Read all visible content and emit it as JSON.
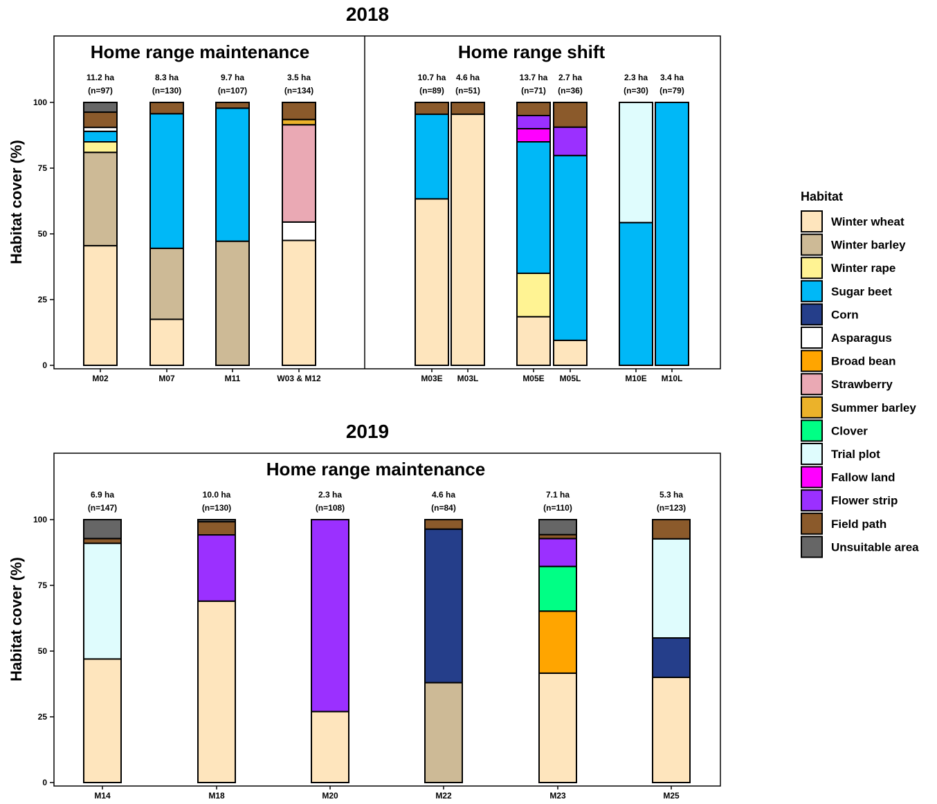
{
  "chart_data": [
    {
      "type": "bar",
      "stacked": true,
      "title": "2018",
      "ylabel": "Habitat cover (%)",
      "ylim": [
        0,
        120
      ],
      "yticks": [
        0,
        25,
        50,
        75,
        100
      ],
      "grid": false,
      "panels": [
        {
          "title": "Home range maintenance",
          "categories": [
            "M02",
            "M07",
            "M11",
            "W03 & M12"
          ],
          "annotations": [
            {
              "area": "11.2 ha",
              "n": "(n=97)"
            },
            {
              "area": "8.3 ha",
              "n": "(n=130)"
            },
            {
              "area": "9.7 ha",
              "n": "(n=107)"
            },
            {
              "area": "3.5 ha",
              "n": "(n=134)"
            }
          ],
          "series": [
            {
              "name": "Winter wheat",
              "values": [
                45.5,
                17.5,
                0,
                47.5
              ]
            },
            {
              "name": "Winter barley",
              "values": [
                35.5,
                27,
                47.2,
                0
              ]
            },
            {
              "name": "Winter rape",
              "values": [
                4,
                0,
                0,
                0
              ]
            },
            {
              "name": "Sugar beet",
              "values": [
                4,
                51.2,
                50.6,
                0
              ]
            },
            {
              "name": "Asparagus",
              "values": [
                1.5,
                0,
                0,
                7
              ]
            },
            {
              "name": "Strawberry",
              "values": [
                0,
                0,
                0,
                37
              ]
            },
            {
              "name": "Summer barley",
              "values": [
                0,
                0,
                0,
                2
              ]
            },
            {
              "name": "Field path",
              "values": [
                5.8,
                4.3,
                2.2,
                6.5
              ]
            },
            {
              "name": "Unsuitable area",
              "values": [
                3.7,
                0,
                0,
                0
              ]
            }
          ]
        },
        {
          "title": "Home range shift",
          "categories": [
            "M03E",
            "M03L",
            "M05E",
            "M05L",
            "M10E",
            "M10L"
          ],
          "annotations": [
            {
              "area": "10.7 ha",
              "n": "(n=89)"
            },
            {
              "area": "4.6 ha",
              "n": "(n=51)"
            },
            {
              "area": "13.7 ha",
              "n": "(n=71)"
            },
            {
              "area": "2.7 ha",
              "n": "(n=36)"
            },
            {
              "area": "2.3 ha",
              "n": "(n=30)"
            },
            {
              "area": "3.4 ha",
              "n": "(n=79)"
            }
          ],
          "series": [
            {
              "name": "Winter wheat",
              "values": [
                63.3,
                95.5,
                18.5,
                9.5,
                0,
                0
              ]
            },
            {
              "name": "Winter rape",
              "values": [
                0,
                0,
                16.5,
                0,
                0,
                0
              ]
            },
            {
              "name": "Sugar beet",
              "values": [
                32.2,
                0,
                50,
                70.3,
                54.3,
                100
              ]
            },
            {
              "name": "Fallow land",
              "values": [
                0,
                0,
                5,
                0,
                0,
                0
              ]
            },
            {
              "name": "Flower strip",
              "values": [
                0,
                0,
                5,
                10.8,
                0,
                0
              ]
            },
            {
              "name": "Trial plot",
              "values": [
                0,
                0,
                0,
                0,
                45.7,
                0
              ]
            },
            {
              "name": "Field path",
              "values": [
                4.5,
                4.5,
                5,
                9.4,
                0,
                0
              ]
            }
          ]
        }
      ]
    },
    {
      "type": "bar",
      "stacked": true,
      "title": "2019",
      "ylabel": "Habitat cover (%)",
      "ylim": [
        0,
        120
      ],
      "yticks": [
        0,
        25,
        50,
        75,
        100
      ],
      "grid": false,
      "panels": [
        {
          "title": "Home range maintenance",
          "categories": [
            "M14",
            "M18",
            "M20",
            "M22",
            "M23",
            "M25"
          ],
          "annotations": [
            {
              "area": "6.9 ha",
              "n": "(n=147)"
            },
            {
              "area": "10.0 ha",
              "n": "(n=130)"
            },
            {
              "area": "2.3 ha",
              "n": "(n=108)"
            },
            {
              "area": "4.6 ha",
              "n": "(n=84)"
            },
            {
              "area": "7.1 ha",
              "n": "(n=110)"
            },
            {
              "area": "5.3 ha",
              "n": "(n=123)"
            }
          ],
          "series": [
            {
              "name": "Winter wheat",
              "values": [
                47,
                69,
                27,
                0,
                41.6,
                40
              ]
            },
            {
              "name": "Winter barley",
              "values": [
                0,
                0,
                0,
                38,
                0,
                0
              ]
            },
            {
              "name": "Corn",
              "values": [
                0,
                0,
                0,
                58.4,
                0,
                15
              ]
            },
            {
              "name": "Broad bean",
              "values": [
                0,
                0,
                0,
                0,
                23.6,
                0
              ]
            },
            {
              "name": "Clover",
              "values": [
                0,
                0,
                0,
                0,
                17,
                0
              ]
            },
            {
              "name": "Trial plot",
              "values": [
                44,
                0,
                0,
                0,
                0,
                37.7
              ]
            },
            {
              "name": "Flower strip",
              "values": [
                0,
                25.2,
                73,
                0,
                10.6,
                0
              ]
            },
            {
              "name": "Field path",
              "values": [
                1.8,
                5,
                0,
                3.6,
                1.5,
                7.3
              ]
            },
            {
              "name": "Unsuitable area",
              "values": [
                7.2,
                0.8,
                0,
                0,
                5.7,
                0
              ]
            }
          ]
        }
      ]
    }
  ],
  "legend": {
    "title": "Habitat",
    "placement": "right",
    "items": [
      {
        "label": "Winter wheat",
        "color": "#FEE5BD"
      },
      {
        "label": "Winter barley",
        "color": "#CDBA96"
      },
      {
        "label": "Winter rape",
        "color": "#FFF393"
      },
      {
        "label": "Sugar beet",
        "color": "#00B8F7"
      },
      {
        "label": "Corn",
        "color": "#253E8A"
      },
      {
        "label": "Asparagus",
        "color": "#FFFFFF"
      },
      {
        "label": "Broad bean",
        "color": "#FFA500"
      },
      {
        "label": "Strawberry",
        "color": "#EAA9B4"
      },
      {
        "label": "Summer barley",
        "color": "#EBB22A"
      },
      {
        "label": "Clover",
        "color": "#00FF85"
      },
      {
        "label": "Trial plot",
        "color": "#DFFCFD"
      },
      {
        "label": "Fallow land",
        "color": "#FF00FF"
      },
      {
        "label": "Flower strip",
        "color": "#9B30FF"
      },
      {
        "label": "Field path",
        "color": "#8B5A2B"
      },
      {
        "label": "Unsuitable area",
        "color": "#666666"
      }
    ]
  }
}
